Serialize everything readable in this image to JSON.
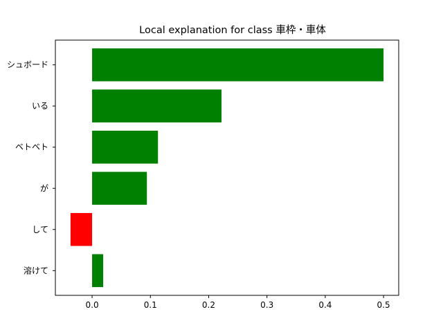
{
  "chart_data": {
    "type": "bar",
    "orientation": "horizontal",
    "title": "Local explanation for class 車枠・車体",
    "xlabel": "",
    "ylabel": "",
    "categories": [
      "溶けて",
      "して",
      "が",
      "ベトベト",
      "いる",
      "シュボード"
    ],
    "values": [
      0.019,
      -0.037,
      0.094,
      0.113,
      0.222,
      0.5
    ],
    "xlim": [
      -0.063,
      0.526
    ],
    "xticks": [
      0.0,
      0.1,
      0.2,
      0.3,
      0.4,
      0.5
    ],
    "xtick_labels": [
      "0.0",
      "0.1",
      "0.2",
      "0.3",
      "0.4",
      "0.5"
    ],
    "grid": false,
    "colors": {
      "positive": "#008000",
      "negative": "#ff0000"
    }
  }
}
